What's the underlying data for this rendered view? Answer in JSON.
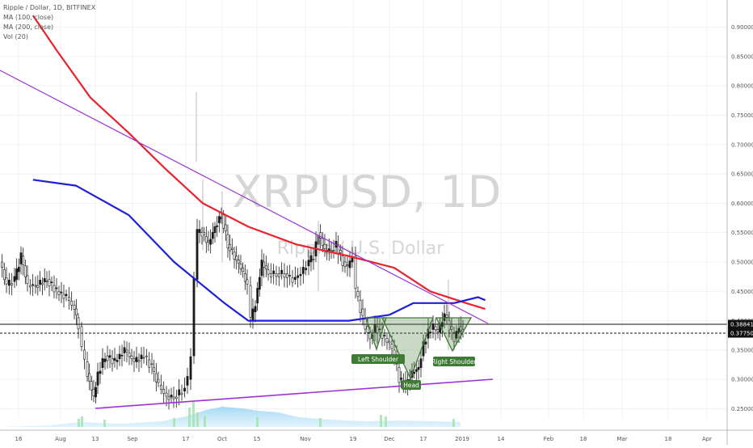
{
  "legend": {
    "title": "Ripple / Dollar, 1D, BITFINEX",
    "ma100": "MA (100, close)",
    "ma200": "MA (200, close)",
    "vol": "Vol (20)"
  },
  "watermark": {
    "symbol": "XRPUSD, 1D",
    "name": "Ripple / U.S. Dollar"
  },
  "price_tags": {
    "upper": "0.38841",
    "lower": "0.37750"
  },
  "colors": {
    "up": "#1a1a1a",
    "down": "#ffffff",
    "ma100": "#e8232d",
    "ma200": "#1f1fd6",
    "trendline": "#9d31d8",
    "pattern": "#3f7b35",
    "volume": "#8fd0f2"
  },
  "chart_data": {
    "type": "line",
    "title": "Ripple / Dollar, 1D, BITFINEX",
    "ylim": [
      0.23,
      0.92
    ],
    "y_ticks": [
      "0.25000",
      "0.30000",
      "0.35000",
      "0.40000",
      "0.45000",
      "0.50000",
      "0.55000",
      "0.60000",
      "0.65000",
      "0.70000",
      "0.75000",
      "0.80000",
      "0.85000",
      "0.90000"
    ],
    "x_ticks": [
      "16",
      "Aug",
      "13",
      "Sep",
      "17",
      "Oct",
      "15",
      "Nov",
      "19",
      "Dec",
      "17",
      "2019",
      "14",
      "Feb",
      "18",
      "Mar",
      "18",
      "Apr"
    ],
    "series": [
      {
        "name": "MA (100, close)",
        "points": [
          [
            "Jun 22",
            0.92
          ],
          [
            "Jul 2",
            0.86
          ],
          [
            "Jul 16",
            0.78
          ],
          [
            "Aug 1",
            0.72
          ],
          [
            "Aug 16",
            0.66
          ],
          [
            "Sep 1",
            0.6
          ],
          [
            "Sep 20",
            0.56
          ],
          [
            "Oct 10",
            0.53
          ],
          [
            "Nov 1",
            0.51
          ],
          [
            "Nov 20",
            0.49
          ],
          [
            "Dec 5",
            0.45
          ],
          [
            "Dec 20",
            0.43
          ],
          [
            "Dec 28",
            0.42
          ]
        ]
      },
      {
        "name": "MA (200, close)",
        "points": [
          [
            "Jun 22",
            0.64
          ],
          [
            "Jul 10",
            0.63
          ],
          [
            "Aug 1",
            0.58
          ],
          [
            "Aug 20",
            0.5
          ],
          [
            "Sep 10",
            0.43
          ],
          [
            "Sep 20",
            0.4
          ],
          [
            "Oct 10",
            0.4
          ],
          [
            "Nov 1",
            0.4
          ],
          [
            "Nov 18",
            0.41
          ],
          [
            "Nov 28",
            0.43
          ],
          [
            "Dec 15",
            0.43
          ],
          [
            "Dec 25",
            0.44
          ],
          [
            "Dec 28",
            0.435
          ]
        ]
      }
    ],
    "annotations": {
      "pattern_labels": [
        "Left Shoulder",
        "Head",
        "Right Shoulder"
      ]
    }
  }
}
